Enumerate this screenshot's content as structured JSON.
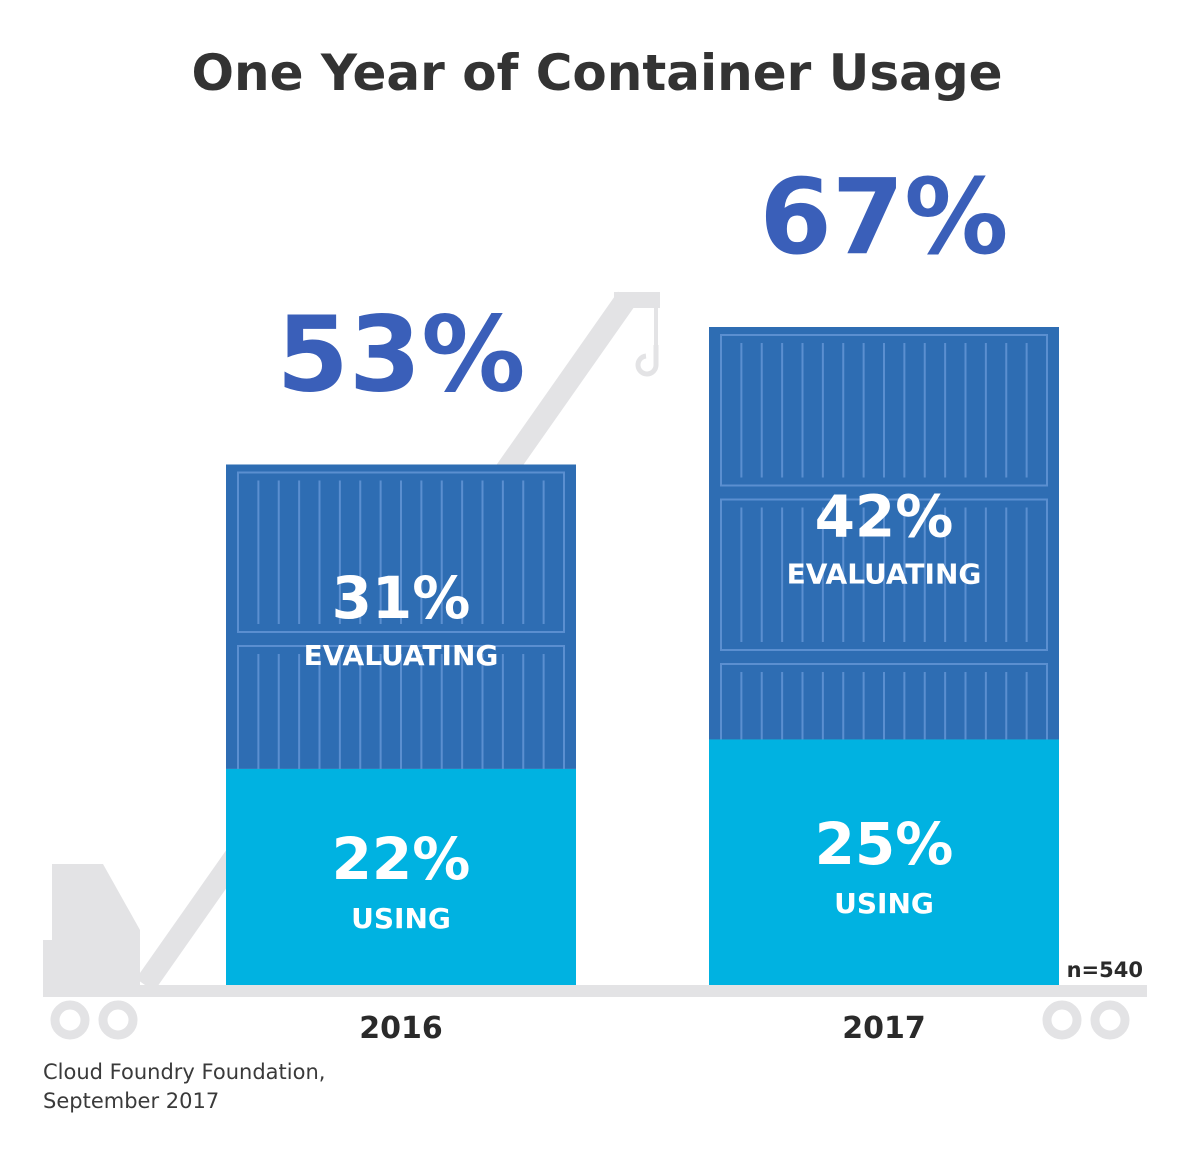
{
  "chart_data": {
    "type": "bar",
    "stacked": true,
    "title": "One Year of Container Usage",
    "categories": [
      "2016",
      "2017"
    ],
    "totals": [
      "53%",
      "67%"
    ],
    "total_values": [
      53,
      67
    ],
    "series": [
      {
        "name": "USING",
        "values": [
          22,
          25
        ],
        "value_labels": [
          "22%",
          "25%"
        ],
        "label": "USING",
        "color": "#00b2e1"
      },
      {
        "name": "EVALUATING",
        "values": [
          31,
          42
        ],
        "value_labels": [
          "31%",
          "42%"
        ],
        "label": "EVALUATING",
        "color": "#2e6db3"
      }
    ],
    "ylim": [
      0,
      67
    ],
    "xlabel": "",
    "ylabel": "",
    "sample_size": "n=540"
  },
  "source": {
    "line1": "Cloud Foundry Foundation,",
    "line2": "September 2017"
  },
  "colors": {
    "using": "#00b2e1",
    "evaluating": "#2e6db3",
    "container_rib": "#5b8fd0",
    "total_text": "#3a5fb9",
    "crane": "#e3e3e5",
    "title": "#333333"
  }
}
